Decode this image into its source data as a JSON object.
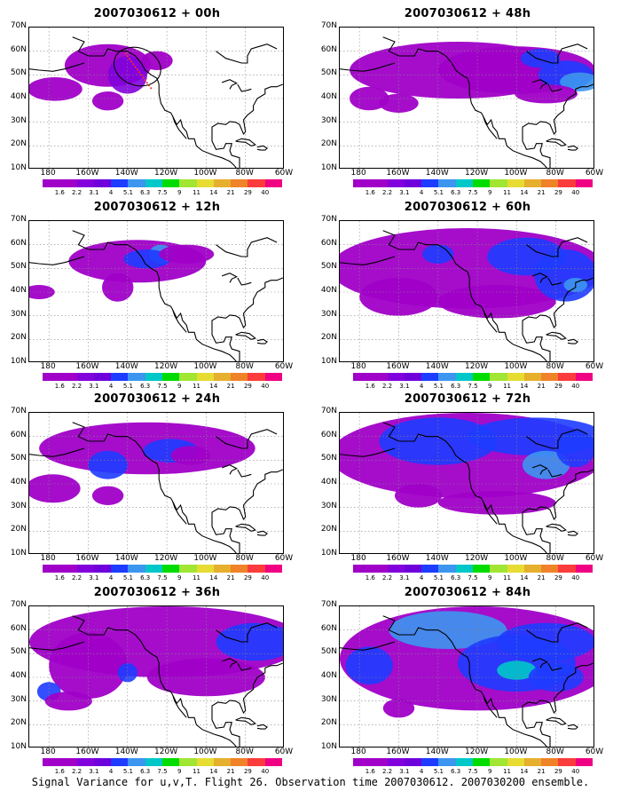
{
  "panels": [
    {
      "title": "2007030612 + 00h",
      "lead": "00h"
    },
    {
      "title": "2007030612 + 48h",
      "lead": "48h"
    },
    {
      "title": "2007030612 + 12h",
      "lead": "12h"
    },
    {
      "title": "2007030612 + 60h",
      "lead": "60h"
    },
    {
      "title": "2007030612 + 24h",
      "lead": "24h"
    },
    {
      "title": "2007030612 + 72h",
      "lead": "72h"
    },
    {
      "title": "2007030612 + 36h",
      "lead": "36h"
    },
    {
      "title": "2007030612 + 84h",
      "lead": "84h"
    }
  ],
  "lat_labels": [
    "70N",
    "60N",
    "50N",
    "40N",
    "30N",
    "20N",
    "10N"
  ],
  "lon_labels": [
    "180",
    "160W",
    "140W",
    "120W",
    "100W",
    "80W",
    "60W"
  ],
  "colorbar": {
    "labels": [
      "1.6",
      "2.2",
      "3.1",
      "4",
      "5.1",
      "6.3",
      "7.5",
      "9",
      "11",
      "14",
      "21",
      "29",
      "40"
    ],
    "colors": [
      "#a000c8",
      "#8200dc",
      "#6e00dc",
      "#1e3cff",
      "#3c96f0",
      "#00c8c8",
      "#00dc00",
      "#a0e632",
      "#e6dc32",
      "#e6af2d",
      "#f08228",
      "#fa3c3c",
      "#f00082"
    ]
  },
  "caption": "Signal Variance for u,v,T. Flight 26. Observation time 2007030612. 2007030200 ensemble."
}
